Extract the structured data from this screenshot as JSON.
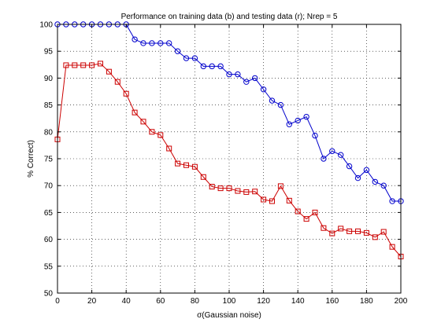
{
  "chart_data": {
    "type": "line",
    "title": "Performance on training data (b) and testing data (r); Nrep = 5",
    "xlabel": "σ(Gaussian noise)",
    "ylabel": "% Correct)",
    "xlim": [
      0,
      200
    ],
    "ylim": [
      50,
      100
    ],
    "xticks": [
      0,
      20,
      40,
      60,
      80,
      100,
      120,
      140,
      160,
      180,
      200
    ],
    "yticks": [
      50,
      55,
      60,
      65,
      70,
      75,
      80,
      85,
      90,
      95,
      100
    ],
    "grid": true,
    "x": [
      0,
      5,
      10,
      15,
      20,
      25,
      30,
      35,
      40,
      45,
      50,
      55,
      60,
      65,
      70,
      75,
      80,
      85,
      90,
      95,
      100,
      105,
      110,
      115,
      120,
      125,
      130,
      135,
      140,
      145,
      150,
      155,
      160,
      165,
      170,
      175,
      180,
      185,
      190,
      195,
      200
    ],
    "series": [
      {
        "name": "training data (b)",
        "color": "#0000cc",
        "marker": "circle",
        "values": [
          100,
          100,
          100,
          100,
          100,
          100,
          100,
          100,
          100,
          97.2,
          96.5,
          96.5,
          96.5,
          96.5,
          95,
          93.7,
          93.7,
          92.2,
          92.2,
          92.2,
          90.7,
          90.7,
          89.3,
          90,
          87.9,
          85.8,
          85,
          81.4,
          82.1,
          82.8,
          79.3,
          75,
          76.4,
          75.7,
          73.6,
          71.4,
          72.9,
          70.7,
          70,
          67.1,
          67.1
        ]
      },
      {
        "name": "testing data (r)",
        "color": "#cc0000",
        "marker": "square",
        "values": [
          78.6,
          92.4,
          92.4,
          92.4,
          92.4,
          92.7,
          91.2,
          89.3,
          87.1,
          83.6,
          81.9,
          80,
          79.4,
          76.9,
          74.1,
          73.8,
          73.5,
          71.6,
          69.8,
          69.5,
          69.5,
          69,
          68.8,
          68.9,
          67.4,
          67.1,
          69.9,
          67.2,
          65.2,
          63.8,
          65,
          62.1,
          61.1,
          62,
          61.5,
          61.5,
          61.2,
          60.4,
          61.4,
          58.6,
          56.8
        ]
      }
    ]
  }
}
